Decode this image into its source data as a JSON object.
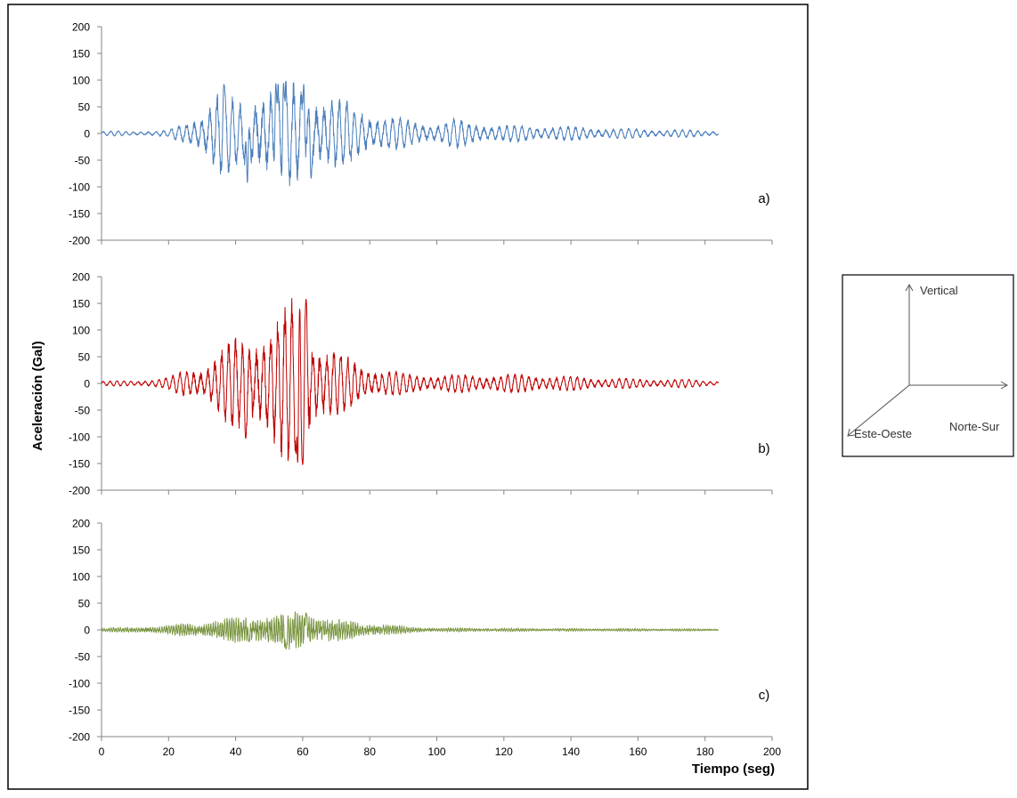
{
  "chart_data": {
    "type": "line",
    "ylabel": "Aceleración (Gal)",
    "xlabel": "Tiempo (seg)",
    "xlim": [
      0,
      200
    ],
    "ylim": [
      -200,
      200
    ],
    "x_ticks": [
      "0",
      "20",
      "40",
      "60",
      "80",
      "100",
      "120",
      "140",
      "160",
      "180",
      "200"
    ],
    "y_ticks": [
      "200",
      "150",
      "100",
      "50",
      "0",
      "-50",
      "-100",
      "-150",
      "-200"
    ],
    "panels": [
      {
        "label": "a)",
        "color": "#4a7ebb",
        "duration": 184,
        "envelope": [
          [
            0,
            4
          ],
          [
            10,
            4
          ],
          [
            20,
            6
          ],
          [
            25,
            18
          ],
          [
            30,
            40
          ],
          [
            35,
            80
          ],
          [
            40,
            55
          ],
          [
            45,
            75
          ],
          [
            50,
            88
          ],
          [
            55,
            85
          ],
          [
            60,
            85
          ],
          [
            65,
            70
          ],
          [
            70,
            60
          ],
          [
            75,
            50
          ],
          [
            80,
            40
          ],
          [
            85,
            30
          ],
          [
            90,
            25
          ],
          [
            95,
            20
          ],
          [
            100,
            18
          ],
          [
            105,
            25
          ],
          [
            110,
            20
          ],
          [
            120,
            14
          ],
          [
            130,
            14
          ],
          [
            140,
            12
          ],
          [
            150,
            10
          ],
          [
            160,
            8
          ],
          [
            170,
            7
          ],
          [
            184,
            5
          ]
        ],
        "peaks": [
          [
            36.5,
            92
          ],
          [
            43.5,
            -92
          ],
          [
            52,
            94
          ],
          [
            54.3,
            94
          ],
          [
            60.3,
            92
          ],
          [
            62.5,
            -84
          ]
        ],
        "period": 2.3,
        "noise": 0.22
      },
      {
        "label": "b)",
        "color": "#c00000",
        "duration": 184,
        "envelope": [
          [
            0,
            4
          ],
          [
            10,
            5
          ],
          [
            20,
            10
          ],
          [
            25,
            25
          ],
          [
            30,
            30
          ],
          [
            35,
            55
          ],
          [
            40,
            80
          ],
          [
            45,
            90
          ],
          [
            50,
            110
          ],
          [
            55,
            130
          ],
          [
            58,
            155
          ],
          [
            60,
            150
          ],
          [
            62,
            120
          ],
          [
            65,
            80
          ],
          [
            70,
            55
          ],
          [
            75,
            40
          ],
          [
            80,
            30
          ],
          [
            85,
            25
          ],
          [
            90,
            18
          ],
          [
            100,
            16
          ],
          [
            110,
            16
          ],
          [
            120,
            16
          ],
          [
            130,
            16
          ],
          [
            140,
            12
          ],
          [
            150,
            10
          ],
          [
            160,
            8
          ],
          [
            170,
            8
          ],
          [
            184,
            5
          ]
        ],
        "peaks": [
          [
            43,
            -103
          ],
          [
            59,
            162
          ],
          [
            61,
            158
          ],
          [
            60,
            -152
          ],
          [
            58.5,
            -148
          ]
        ],
        "period": 2.1,
        "noise": 0.2
      },
      {
        "label": "c)",
        "color": "#77933c",
        "duration": 184,
        "envelope": [
          [
            0,
            3
          ],
          [
            10,
            4
          ],
          [
            20,
            6
          ],
          [
            25,
            10
          ],
          [
            30,
            12
          ],
          [
            35,
            14
          ],
          [
            40,
            18
          ],
          [
            45,
            22
          ],
          [
            50,
            22
          ],
          [
            55,
            24
          ],
          [
            60,
            28
          ],
          [
            65,
            20
          ],
          [
            70,
            15
          ],
          [
            75,
            12
          ],
          [
            80,
            10
          ],
          [
            85,
            8
          ],
          [
            90,
            5
          ],
          [
            100,
            3
          ],
          [
            120,
            2.5
          ],
          [
            140,
            2
          ],
          [
            160,
            2
          ],
          [
            184,
            1.5
          ]
        ],
        "peaks": [
          [
            61,
            32
          ],
          [
            55,
            -36
          ],
          [
            44,
            -22
          ]
        ],
        "period": 0.7,
        "noise": 0.5
      }
    ],
    "inset": {
      "vertical": "Vertical",
      "north_south": "Norte-Sur",
      "east_west": "Este-Oeste"
    }
  }
}
